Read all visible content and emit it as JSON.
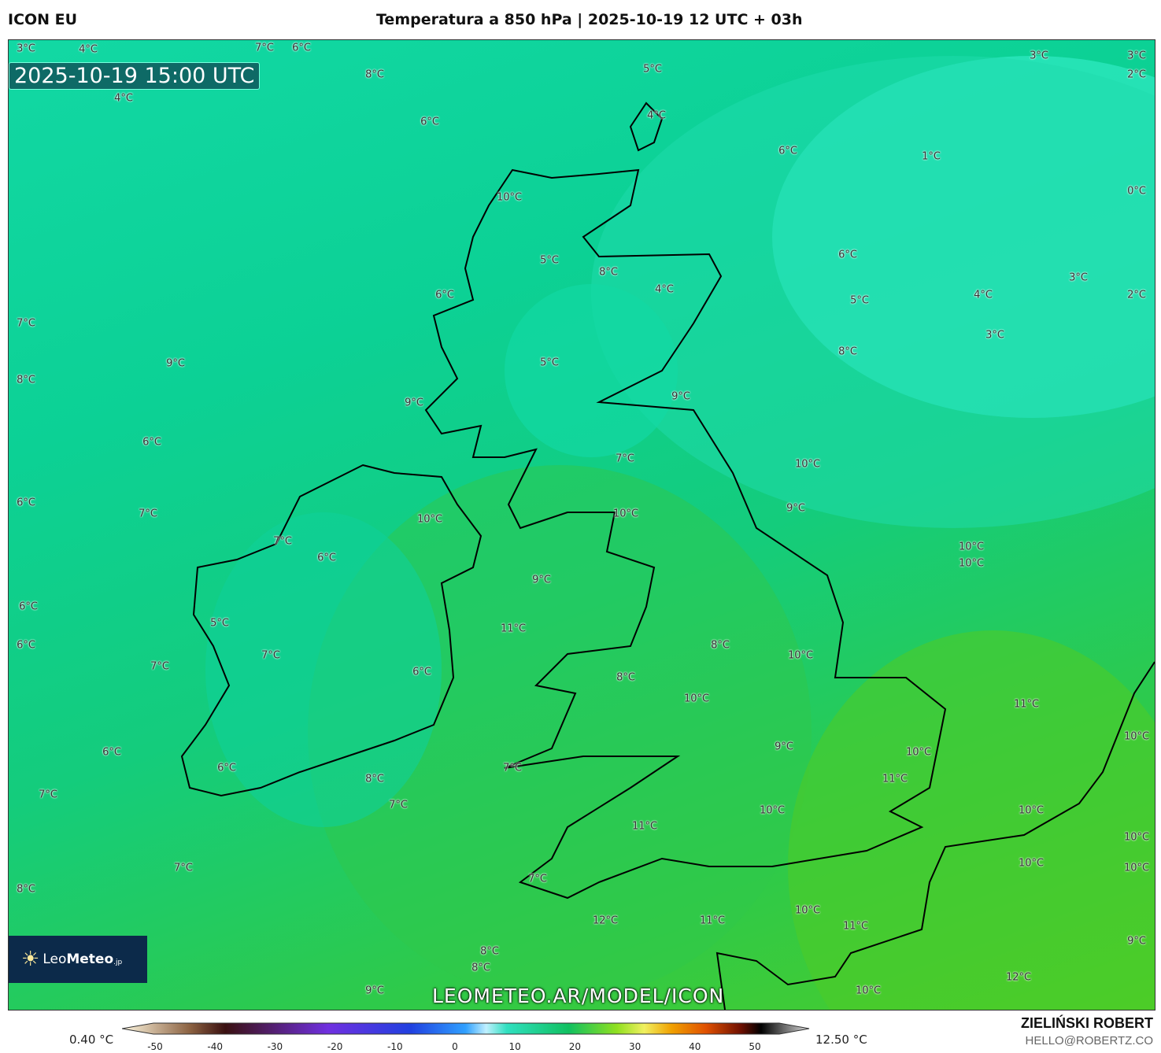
{
  "header": {
    "model": "ICON EU",
    "title": "Temperatura a 850 hPa | 2025-10-19 12 UTC + 03h"
  },
  "map": {
    "valid_time": "2025-10-19 15:00 UTC",
    "watermark_url": "LEOMETEO.AR/MODEL/ICON",
    "logo": {
      "light": "Leo",
      "bold": "Meteo",
      "suffix": ".jp"
    },
    "labels": [
      "3°C",
      "4°C",
      "7°C",
      "6°C",
      "8°C",
      "4°C",
      "5°C",
      "6°C",
      "4°C",
      "6°C",
      "3°C",
      "3°C",
      "2°C",
      "1°C",
      "0°C",
      "10°C",
      "5°C",
      "8°C",
      "4°C",
      "6°C",
      "3°C",
      "2°C",
      "6°C",
      "5°C",
      "4°C",
      "7°C",
      "3°C",
      "8°C",
      "9°C",
      "5°C",
      "8°C",
      "9°C",
      "9°C",
      "6°C",
      "7°C",
      "10°C",
      "6°C",
      "7°C",
      "9°C",
      "10°C",
      "10°C",
      "7°C",
      "10°C",
      "6°C",
      "10°C",
      "9°C",
      "6°C",
      "5°C",
      "11°C",
      "6°C",
      "8°C",
      "7°C",
      "10°C",
      "7°C",
      "6°C",
      "8°C",
      "10°C",
      "11°C",
      "10°C",
      "6°C",
      "9°C",
      "10°C",
      "6°C",
      "7°C",
      "11°C",
      "8°C",
      "7°C",
      "7°C",
      "10°C",
      "10°C",
      "11°C",
      "10°C",
      "10°C",
      "10°C",
      "7°C",
      "7°C",
      "8°C",
      "10°C",
      "12°C",
      "11°C",
      "11°C",
      "9°C",
      "8°C",
      "12°C",
      "8°C",
      "9°C",
      "10°C"
    ],
    "colors": {
      "cold": "#2de8c0",
      "mid": "#0cd195",
      "warm": "#4ccc28",
      "coast": "#000000",
      "borders": "#aaaaaa"
    }
  },
  "colorbar": {
    "min_label": "0.40 °C",
    "max_label": "12.50 °C",
    "ticks": [
      "-50",
      "-40",
      "-30",
      "-20",
      "-10",
      "0",
      "10",
      "20",
      "30",
      "40",
      "50"
    ]
  },
  "author": {
    "name": "ZIELIŃSKI ROBERT",
    "email": "HELLO@ROBERTZ.CO"
  }
}
